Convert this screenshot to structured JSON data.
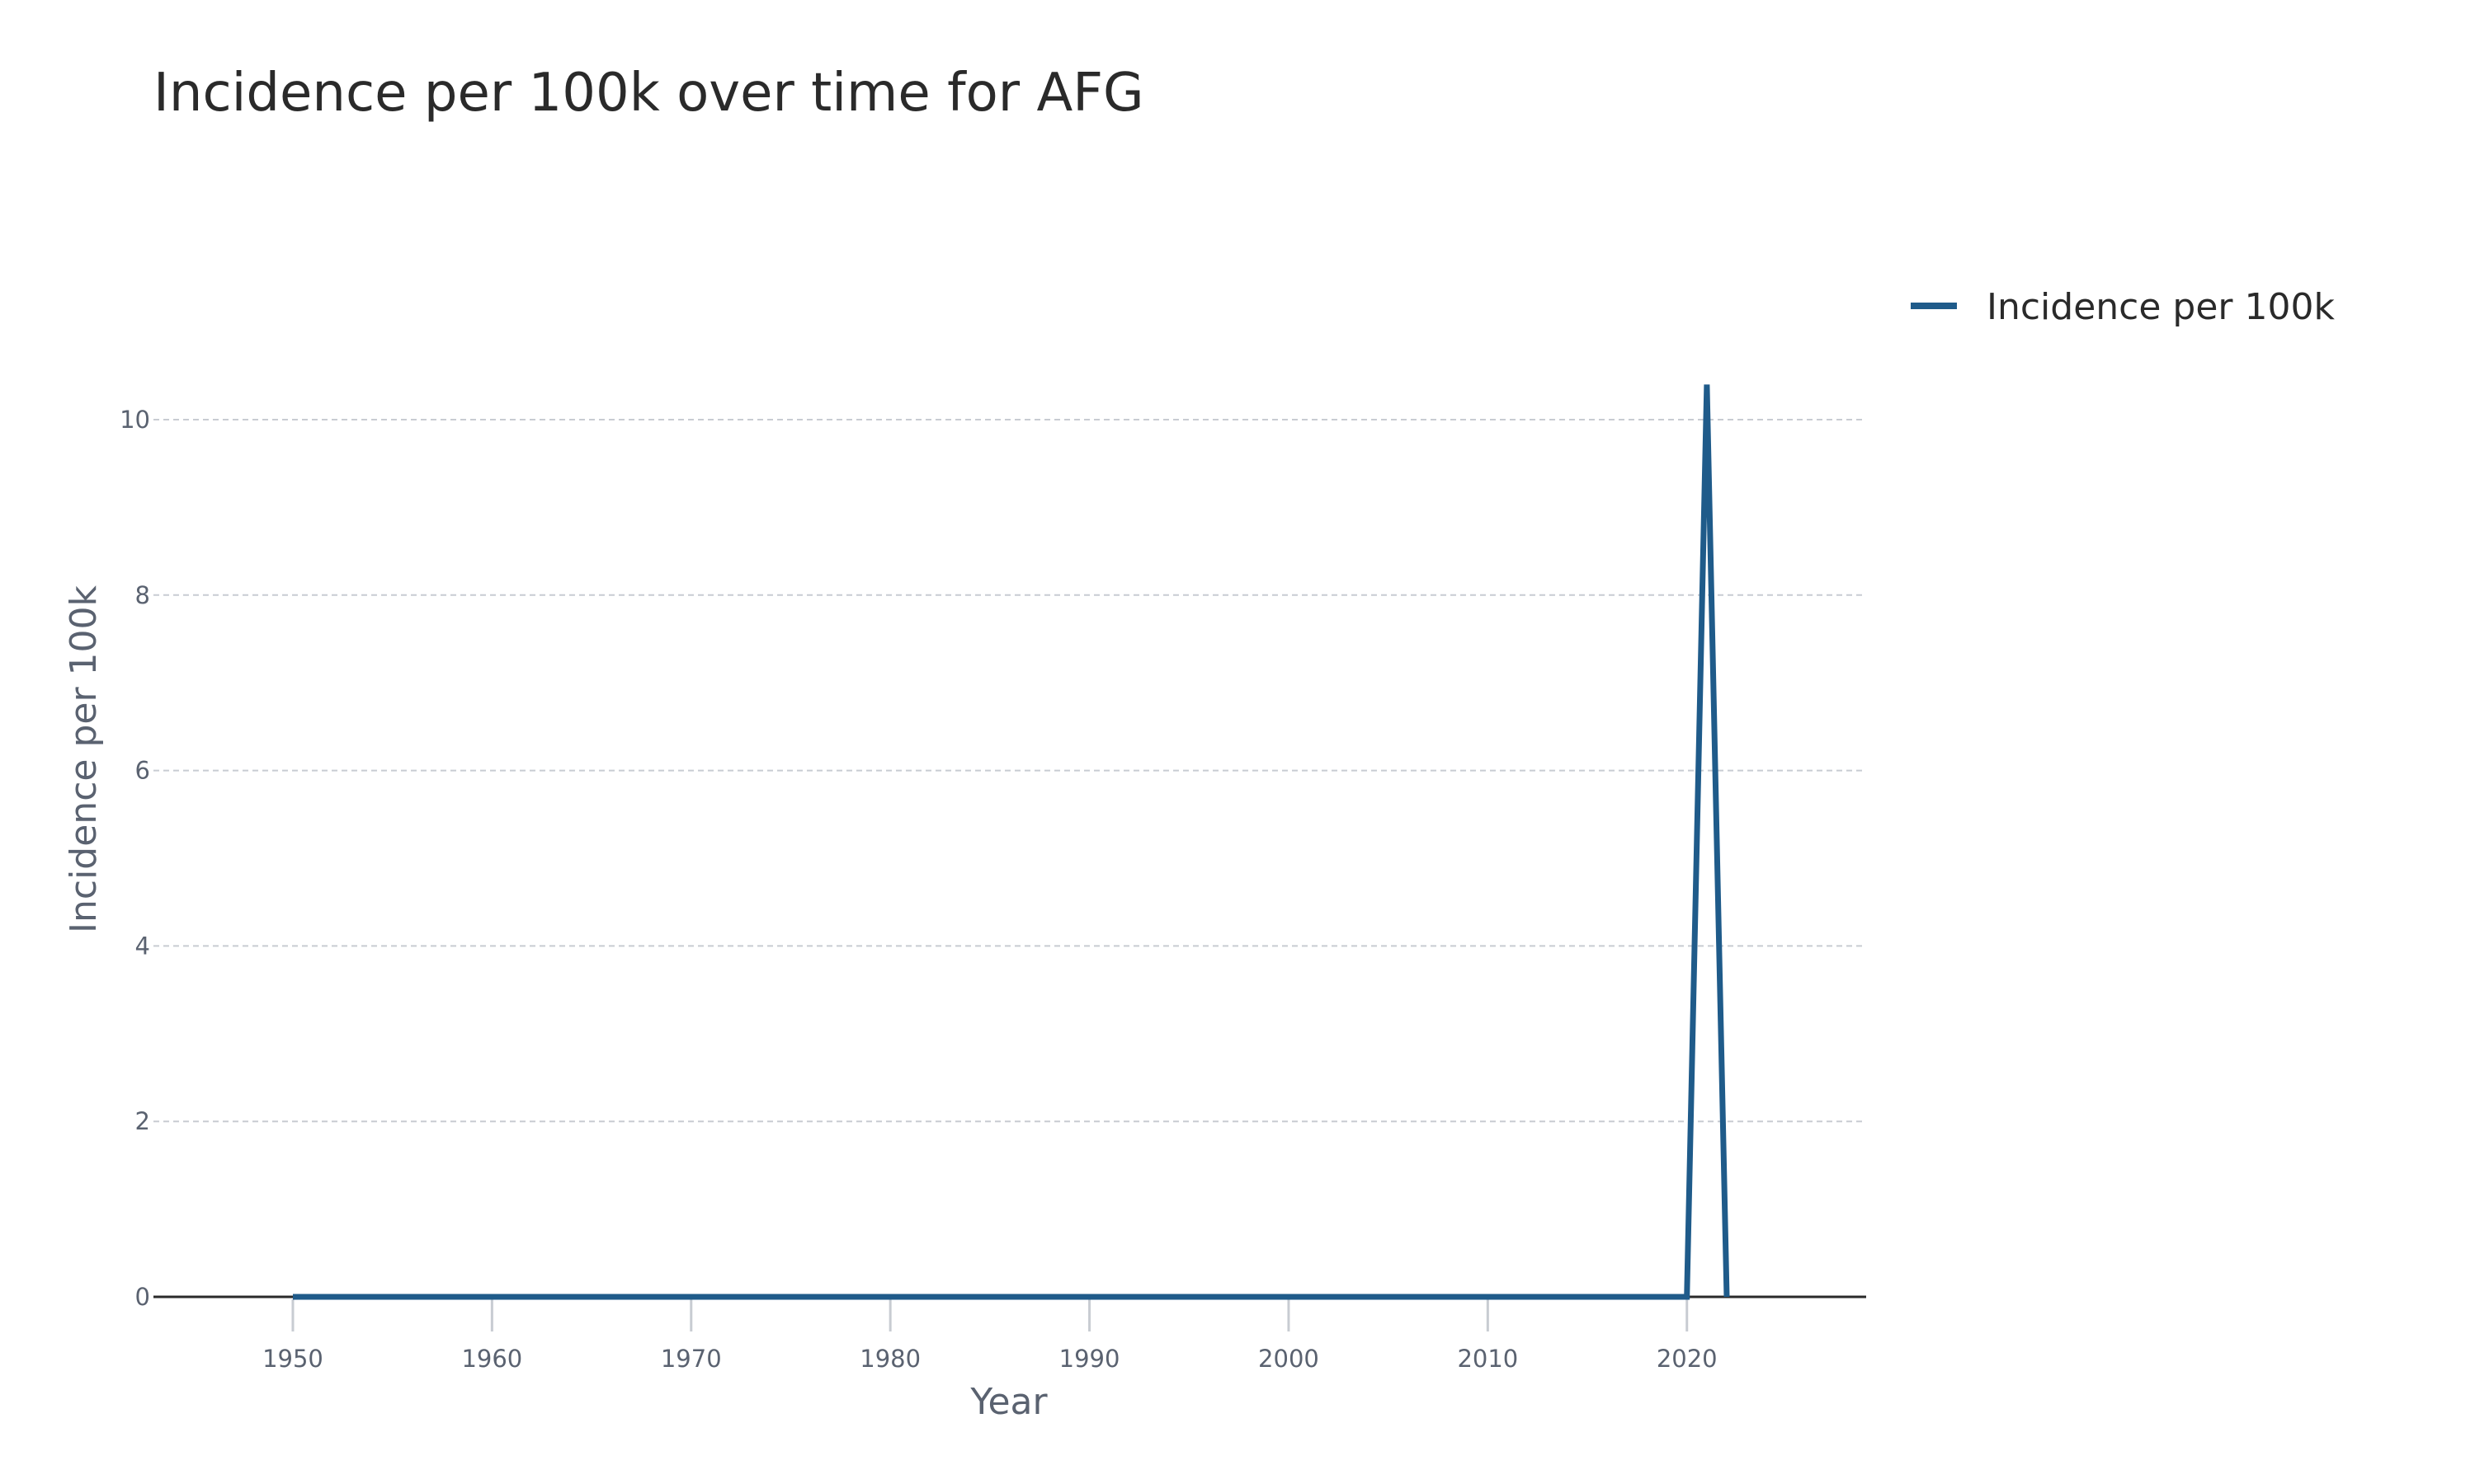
{
  "chart_data": {
    "type": "line",
    "title": "Incidence per 100k over time for AFG",
    "xlabel": "Year",
    "ylabel": "Incidence per 100k",
    "xlim": [
      1943,
      2029
    ],
    "ylim": [
      0,
      11.4
    ],
    "x_ticks": [
      1950,
      1960,
      1970,
      1980,
      1990,
      2000,
      2010,
      2020
    ],
    "y_ticks": [
      0,
      2,
      4,
      6,
      8,
      10
    ],
    "grid": true,
    "legend_position": "top-right",
    "series": [
      {
        "name": "Incidence per 100k",
        "color": "#1f5b8a",
        "x": [
          1950,
          2020,
          2021,
          2022
        ],
        "y": [
          0,
          0,
          10.4,
          0
        ]
      }
    ]
  }
}
